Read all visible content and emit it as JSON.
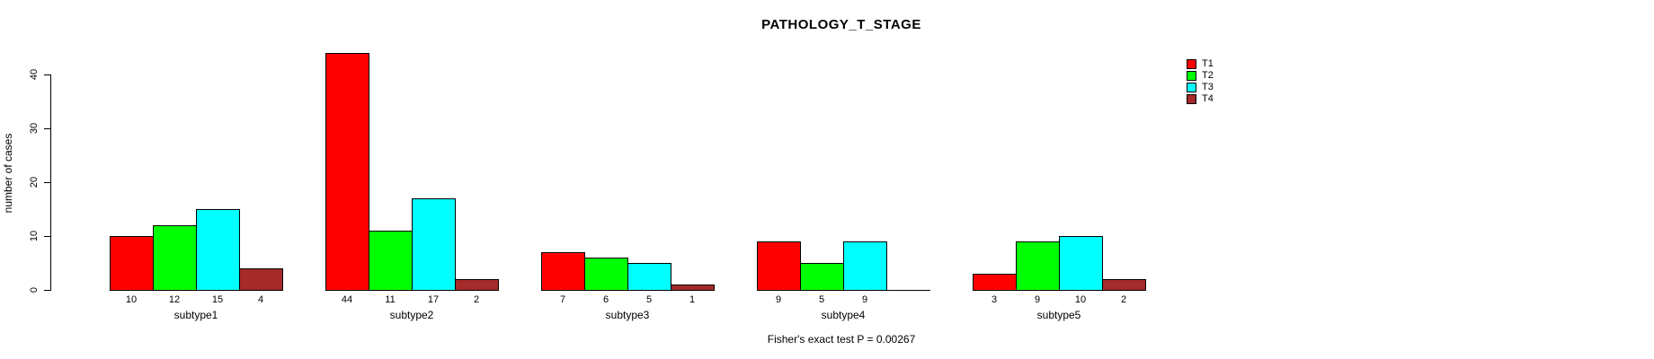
{
  "chart_data": {
    "type": "bar",
    "title": "PATHOLOGY_T_STAGE",
    "ylabel": "number of cases",
    "xlabel": "",
    "categories": [
      "subtype1",
      "subtype2",
      "subtype3",
      "subtype4",
      "subtype5"
    ],
    "series": [
      {
        "name": "T1",
        "color": "#FF0000",
        "values": [
          10,
          44,
          7,
          9,
          3
        ]
      },
      {
        "name": "T2",
        "color": "#00FF00",
        "values": [
          12,
          11,
          6,
          5,
          9
        ]
      },
      {
        "name": "T3",
        "color": "#00FFFF",
        "values": [
          15,
          17,
          5,
          9,
          10
        ]
      },
      {
        "name": "T4",
        "color": "#A52A2A",
        "values": [
          4,
          2,
          1,
          0,
          2
        ]
      }
    ],
    "bar_value_labels": [
      [
        "10",
        "12",
        "15",
        "4"
      ],
      [
        "44",
        "11",
        "17",
        "2"
      ],
      [
        "7",
        "6",
        "5",
        "1"
      ],
      [
        "9",
        "5",
        "9",
        ""
      ],
      [
        "3",
        "9",
        "10",
        "2"
      ]
    ],
    "yticks": [
      "0",
      "10",
      "20",
      "30",
      "40"
    ],
    "ylim": [
      0,
      44
    ],
    "grid": false,
    "legend_position": "top-right",
    "legend_entries": [
      "T1",
      "T2",
      "T3",
      "T4"
    ],
    "annotation": "Fisher's exact test P = 0.00267"
  }
}
